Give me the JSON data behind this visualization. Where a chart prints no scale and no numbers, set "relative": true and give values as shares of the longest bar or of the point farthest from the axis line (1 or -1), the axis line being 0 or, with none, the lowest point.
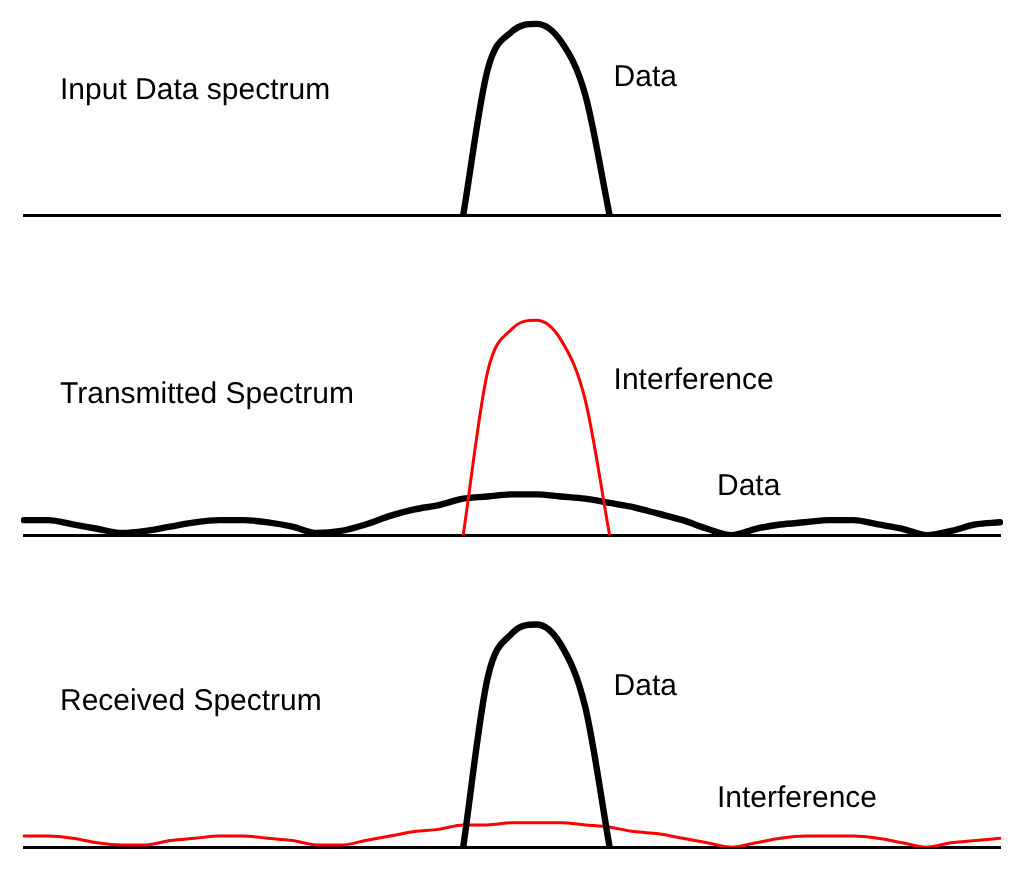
{
  "chart_data": [
    {
      "type": "line",
      "relative": true,
      "title": "Input Data spectrum",
      "legend": false,
      "marker": "none",
      "categories": [
        null,
        null,
        null,
        null,
        null,
        null,
        null,
        null,
        null,
        null,
        null,
        null,
        null,
        null,
        null,
        null,
        null,
        null,
        null,
        null,
        null,
        null,
        null,
        null,
        null,
        null,
        null,
        null,
        null,
        null,
        null,
        null,
        null,
        null,
        null,
        null,
        null,
        null,
        null,
        null,
        null
      ],
      "series": [
        {
          "name": "Data",
          "color": "#000000",
          "values": [
            null,
            null,
            null,
            null,
            null,
            null,
            null,
            null,
            null,
            null,
            null,
            null,
            null,
            null,
            null,
            null,
            null,
            null,
            0,
            0.76,
            0.96,
            1,
            0.91,
            0.63,
            0,
            null,
            null,
            null,
            null,
            null,
            null,
            null,
            null,
            null,
            null,
            null,
            null,
            null,
            null,
            null,
            null
          ]
        }
      ]
    },
    {
      "type": "line",
      "relative": true,
      "title": "Transmitted Spectrum",
      "legend": false,
      "marker": "none",
      "categories": [
        null,
        null,
        null,
        null,
        null,
        null,
        null,
        null,
        null,
        null,
        null,
        null,
        null,
        null,
        null,
        null,
        null,
        null,
        null,
        null,
        null,
        null,
        null,
        null,
        null,
        null,
        null,
        null,
        null,
        null,
        null,
        null,
        null,
        null,
        null,
        null,
        null,
        null,
        null,
        null,
        null
      ],
      "series": [
        {
          "name": "Interference",
          "color": "#ff0000",
          "values": [
            null,
            null,
            null,
            null,
            null,
            null,
            null,
            null,
            null,
            null,
            null,
            null,
            null,
            null,
            null,
            null,
            null,
            null,
            0,
            0.76,
            0.96,
            1,
            0.91,
            0.63,
            0,
            null,
            null,
            null,
            null,
            null,
            null,
            null,
            null,
            null,
            null,
            null,
            null,
            null,
            null,
            null,
            null
          ]
        },
        {
          "name": "Data",
          "color": "#000000",
          "values": [
            0.07,
            0.07,
            0.05,
            0.03,
            0.01,
            0.02,
            0.04,
            0.06,
            0.07,
            0.07,
            0.06,
            0.04,
            0.01,
            0.02,
            0.05,
            0.09,
            0.12,
            0.14,
            0.17,
            0.18,
            0.19,
            0.19,
            0.18,
            0.17,
            0.15,
            0.13,
            0.1,
            0.07,
            0.03,
            0,
            0.03,
            0.05,
            0.06,
            0.07,
            0.07,
            0.05,
            0.03,
            0,
            0.02,
            0.05,
            0.06
          ]
        }
      ]
    },
    {
      "type": "line",
      "relative": true,
      "title": "Received Spectrum",
      "legend": false,
      "marker": "none",
      "categories": [
        null,
        null,
        null,
        null,
        null,
        null,
        null,
        null,
        null,
        null,
        null,
        null,
        null,
        null,
        null,
        null,
        null,
        null,
        null,
        null,
        null,
        null,
        null,
        null,
        null,
        null,
        null,
        null,
        null,
        null,
        null,
        null,
        null,
        null,
        null,
        null,
        null,
        null,
        null,
        null,
        null
      ],
      "series": [
        {
          "name": "Data",
          "color": "#000000",
          "values": [
            null,
            null,
            null,
            null,
            null,
            null,
            null,
            null,
            null,
            null,
            null,
            null,
            null,
            null,
            null,
            null,
            null,
            null,
            0,
            0.76,
            0.96,
            1,
            0.91,
            0.63,
            0,
            null,
            null,
            null,
            null,
            null,
            null,
            null,
            null,
            null,
            null,
            null,
            null,
            null,
            null,
            null,
            null
          ]
        },
        {
          "name": "Interference",
          "color": "#ff0000",
          "values": [
            0.05,
            0.05,
            0.04,
            0.02,
            0.01,
            0.01,
            0.03,
            0.04,
            0.05,
            0.05,
            0.04,
            0.03,
            0.01,
            0.01,
            0.03,
            0.05,
            0.07,
            0.08,
            0.1,
            0.1,
            0.11,
            0.11,
            0.11,
            0.1,
            0.09,
            0.07,
            0.06,
            0.04,
            0.02,
            0,
            0.02,
            0.04,
            0.05,
            0.05,
            0.05,
            0.04,
            0.02,
            0,
            0.02,
            0.03,
            0.04
          ]
        }
      ]
    }
  ]
}
